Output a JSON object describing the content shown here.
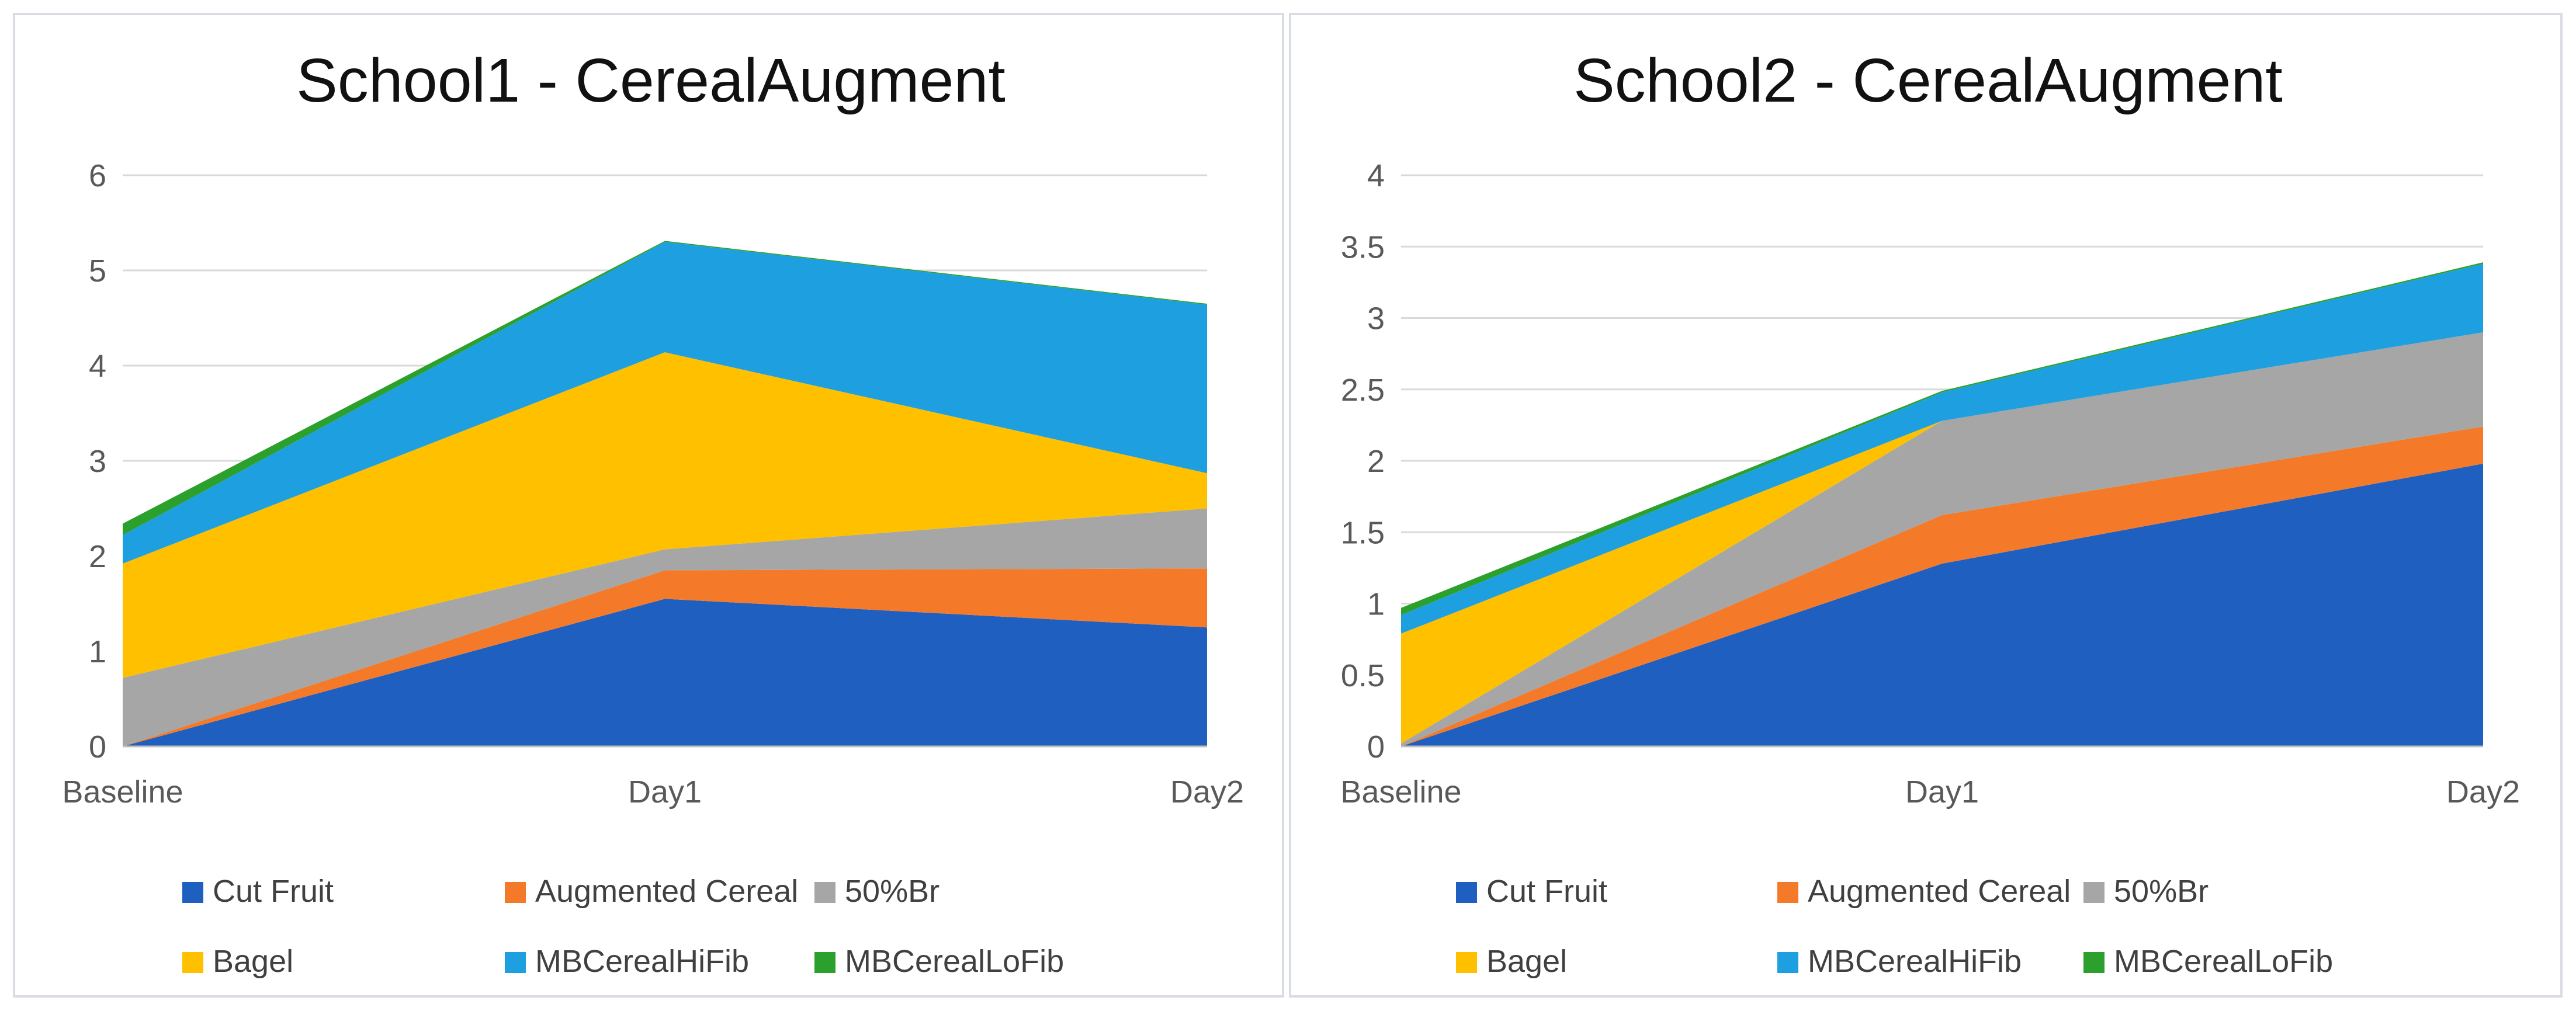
{
  "chart_data": [
    {
      "type": "area",
      "stacked": true,
      "title": "School1 - CerealAugment",
      "xlabel": "",
      "ylabel": "",
      "categories": [
        "Baseline",
        "Day1",
        "Day2"
      ],
      "ylim": [
        0,
        6
      ],
      "yticks": [
        0,
        1,
        2,
        3,
        4,
        5,
        6
      ],
      "grid": true,
      "legend_position": "bottom",
      "series": [
        {
          "name": "Cut Fruit",
          "color": "#1f5fbf",
          "values": [
            0,
            1.55,
            1.25
          ]
        },
        {
          "name": "Augmented Cereal",
          "color": "#f47a2a",
          "values": [
            0,
            0.3,
            0.62
          ]
        },
        {
          "name": "50%Br",
          "color": "#a6a6a6",
          "values": [
            0.72,
            0.22,
            0.63
          ]
        },
        {
          "name": "Bagel",
          "color": "#ffc000",
          "values": [
            1.2,
            2.07,
            0.37
          ]
        },
        {
          "name": "MBCerealHiFib",
          "color": "#1ea0e0",
          "values": [
            0.3,
            1.16,
            1.77
          ]
        },
        {
          "name": "MBCerealLoFib",
          "color": "#2ca02c",
          "values": [
            0.12,
            0.01,
            0.01
          ]
        }
      ]
    },
    {
      "type": "area",
      "stacked": true,
      "title": "School2 - CerealAugment",
      "xlabel": "",
      "ylabel": "",
      "categories": [
        "Baseline",
        "Day1",
        "Day2"
      ],
      "ylim": [
        0,
        4
      ],
      "yticks": [
        0,
        0.5,
        1,
        1.5,
        2,
        2.5,
        3,
        3.5,
        4
      ],
      "grid": true,
      "legend_position": "bottom",
      "series": [
        {
          "name": "Cut Fruit",
          "color": "#1f5fbf",
          "values": [
            0,
            1.28,
            1.98
          ]
        },
        {
          "name": "Augmented Cereal",
          "color": "#f47a2a",
          "values": [
            0,
            0.34,
            0.26
          ]
        },
        {
          "name": "50%Br",
          "color": "#a6a6a6",
          "values": [
            0.02,
            0.66,
            0.66
          ]
        },
        {
          "name": "Bagel",
          "color": "#ffc000",
          "values": [
            0.77,
            0.0,
            0.0
          ]
        },
        {
          "name": "MBCerealHiFib",
          "color": "#1ea0e0",
          "values": [
            0.13,
            0.2,
            0.48
          ]
        },
        {
          "name": "MBCerealLoFib",
          "color": "#2ca02c",
          "values": [
            0.05,
            0.01,
            0.01
          ]
        }
      ]
    }
  ]
}
